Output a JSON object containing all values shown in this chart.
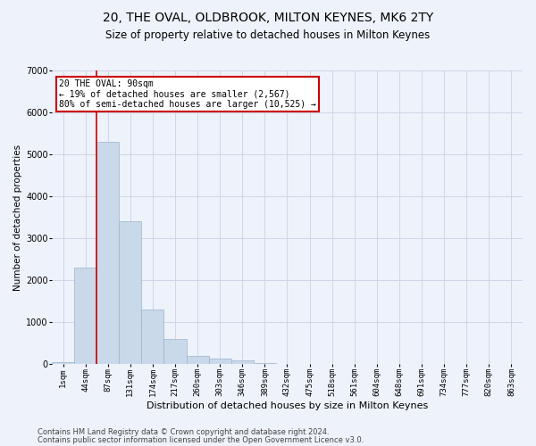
{
  "title": "20, THE OVAL, OLDBROOK, MILTON KEYNES, MK6 2TY",
  "subtitle": "Size of property relative to detached houses in Milton Keynes",
  "xlabel": "Distribution of detached houses by size in Milton Keynes",
  "ylabel": "Number of detached properties",
  "footnote1": "Contains HM Land Registry data © Crown copyright and database right 2024.",
  "footnote2": "Contains public sector information licensed under the Open Government Licence v3.0.",
  "bin_labels": [
    "1sqm",
    "44sqm",
    "87sqm",
    "131sqm",
    "174sqm",
    "217sqm",
    "260sqm",
    "303sqm",
    "346sqm",
    "389sqm",
    "432sqm",
    "475sqm",
    "518sqm",
    "561sqm",
    "604sqm",
    "648sqm",
    "691sqm",
    "734sqm",
    "777sqm",
    "820sqm",
    "863sqm"
  ],
  "bar_values": [
    50,
    2300,
    5300,
    3400,
    1300,
    600,
    200,
    130,
    80,
    30,
    10,
    5,
    2,
    1,
    0,
    0,
    0,
    0,
    0,
    0,
    0
  ],
  "bar_color": "#c9d9ea",
  "bar_edge_color": "#9ab4cc",
  "grid_color": "#cdd6e8",
  "vline_color": "#cc0000",
  "annotation_box_color": "#cc0000",
  "annotation_line1": "20 THE OVAL: 90sqm",
  "annotation_line2": "← 19% of detached houses are smaller (2,567)",
  "annotation_line3": "80% of semi-detached houses are larger (10,525) →",
  "ylim": [
    0,
    7000
  ],
  "yticks": [
    0,
    1000,
    2000,
    3000,
    4000,
    5000,
    6000,
    7000
  ],
  "background_color": "#eef2fa",
  "axes_background": "#eef2fa"
}
